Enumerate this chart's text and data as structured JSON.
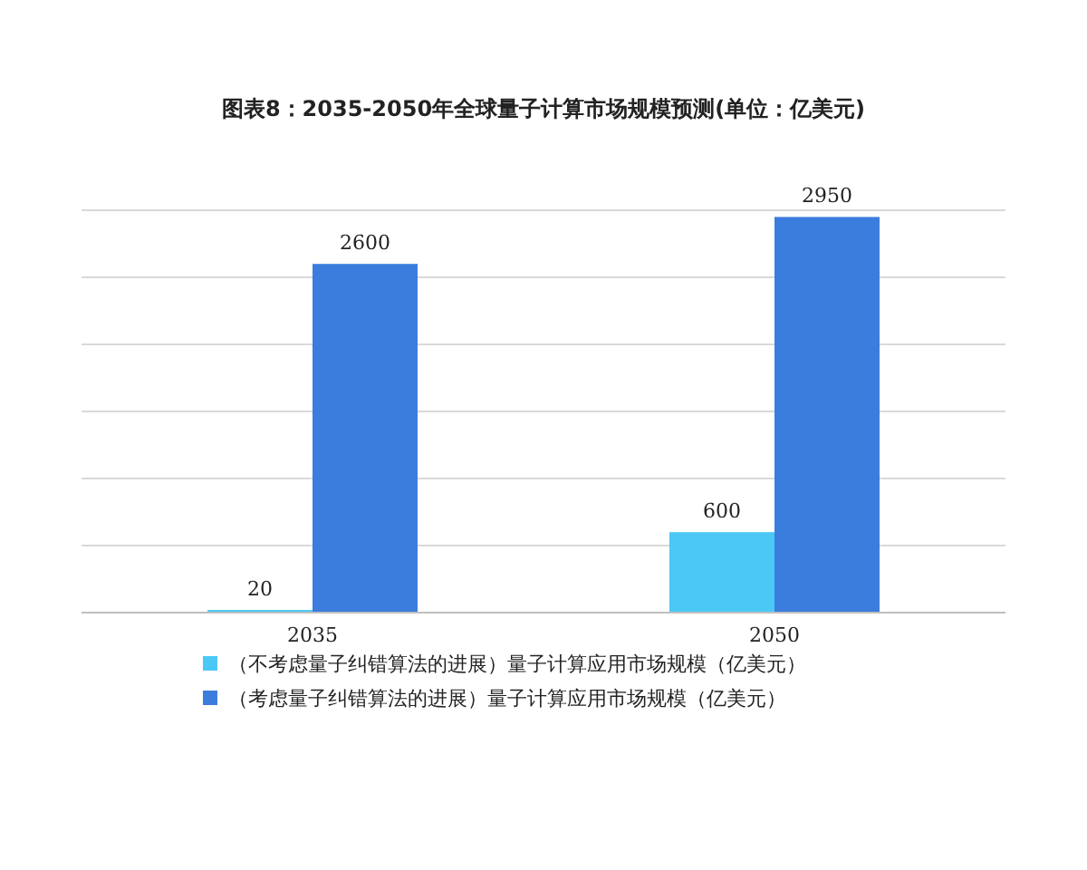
{
  "chart_data": {
    "type": "bar",
    "title": "图表8：2035-2050年全球量子计算市场规模预测(单位：亿美元)",
    "categories": [
      "2035",
      "2050"
    ],
    "series": [
      {
        "name": "（不考虑量子纠错算法的进展）量子计算应用市场规模（亿美元）",
        "color": "#4bc8f5",
        "values": [
          20,
          600
        ]
      },
      {
        "name": "（考虑量子纠错算法的进展）量子计算应用市场规模（亿美元）",
        "color": "#3b7ddd",
        "values": [
          2600,
          2950
        ]
      }
    ],
    "ylim": [
      0,
      3000
    ],
    "yticks": [
      {
        "value": 0,
        "label": null
      },
      {
        "value": 500,
        "label": null
      },
      {
        "value": 1000,
        "label": null
      },
      {
        "value": 1500,
        "label": null
      },
      {
        "value": 2000,
        "label": null
      },
      {
        "value": 2500,
        "label": null
      },
      {
        "value": 3000,
        "label": null
      }
    ],
    "grid": "y",
    "legend": "bottom",
    "data_labels": true
  }
}
